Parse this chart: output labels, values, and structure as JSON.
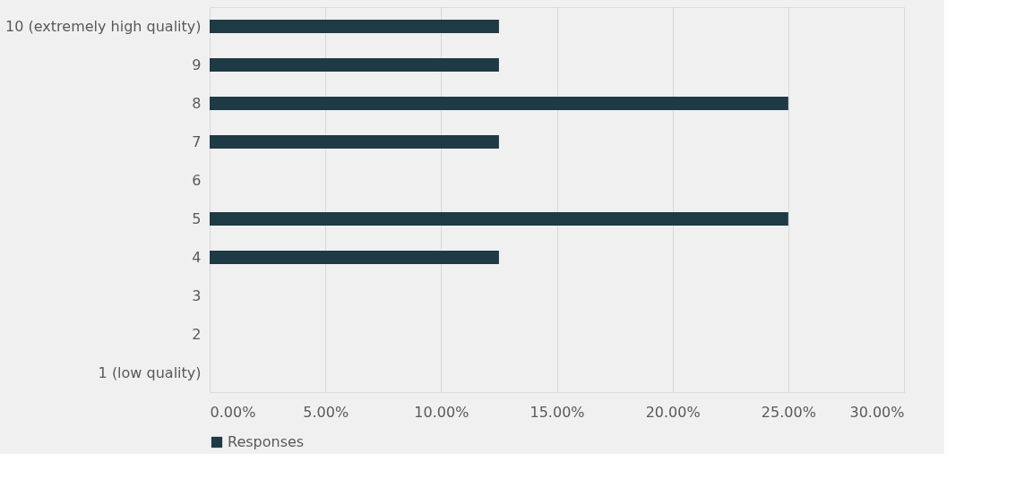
{
  "chart_data": {
    "type": "bar",
    "orientation": "horizontal",
    "categories": [
      "10 (extremely high quality)",
      "9",
      "8",
      "7",
      "6",
      "5",
      "4",
      "3",
      "2",
      "1 (low quality)"
    ],
    "series": [
      {
        "name": "Responses",
        "color": "#1e3a45",
        "values": [
          12.5,
          12.5,
          25,
          12.5,
          0,
          25,
          12.5,
          0,
          0,
          0
        ]
      }
    ],
    "xlim": [
      0,
      30
    ],
    "xticks": [
      {
        "value": 0,
        "label": "0.00%"
      },
      {
        "value": 5,
        "label": "5.00%"
      },
      {
        "value": 10,
        "label": "10.00%"
      },
      {
        "value": 15,
        "label": "15.00%"
      },
      {
        "value": 20,
        "label": "20.00%"
      },
      {
        "value": 25,
        "label": "25.00%"
      },
      {
        "value": 30,
        "label": "30.00%"
      }
    ],
    "grid": "x",
    "legend": "bottom"
  }
}
